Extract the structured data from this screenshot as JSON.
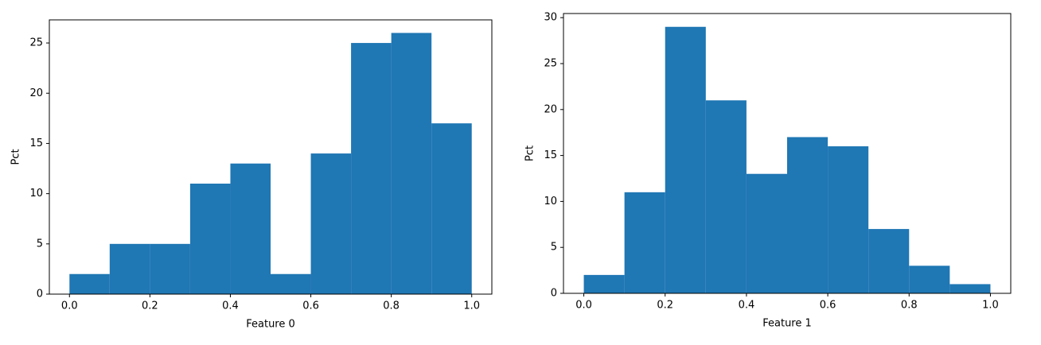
{
  "chart_data": [
    {
      "type": "histogram",
      "xlabel": "Feature 0",
      "ylabel": "Pct",
      "color": "#1f77b4",
      "bins": [
        0.0,
        0.1,
        0.2,
        0.3,
        0.4,
        0.5,
        0.6,
        0.7,
        0.8,
        0.9,
        1.0
      ],
      "values": [
        2,
        5,
        5,
        11,
        13,
        2,
        14,
        25,
        26,
        17
      ],
      "xlim": [
        -0.05,
        1.05
      ],
      "ylim": [
        0,
        27.3
      ],
      "xticks": [
        {
          "value": 0,
          "label": "0.0"
        },
        0.2,
        0.4,
        0.6,
        0.8,
        {
          "value": 1,
          "label": "1.0"
        }
      ],
      "yticks": [
        0,
        5,
        10,
        15,
        20,
        25
      ]
    },
    {
      "type": "histogram",
      "xlabel": "Feature 1",
      "ylabel": "Pct",
      "color": "#1f77b4",
      "bins": [
        0.0,
        0.1,
        0.2,
        0.3,
        0.4,
        0.5,
        0.6,
        0.7,
        0.8,
        0.9,
        1.0
      ],
      "values": [
        2,
        11,
        29,
        21,
        13,
        17,
        16,
        7,
        3,
        1
      ],
      "xlim": [
        -0.05,
        1.05
      ],
      "ylim": [
        0,
        30.45
      ],
      "xticks": [
        {
          "value": 0,
          "label": "0.0"
        },
        0.2,
        0.4,
        0.6,
        0.8,
        {
          "value": 1,
          "label": "1.0"
        }
      ],
      "yticks": [
        0,
        5,
        10,
        15,
        20,
        25,
        30
      ]
    }
  ]
}
